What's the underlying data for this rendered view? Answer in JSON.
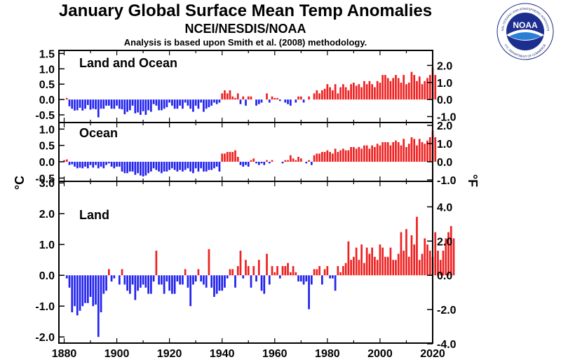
{
  "header": {
    "title": "January Global Surface Mean Temp Anomalies",
    "subtitle": "NCEI/NESDIS/NOAA",
    "note": "Analysis is based upon Smith et al. (2008) methodology."
  },
  "logo": {
    "text": "NOAA",
    "ring_top": "NATIONAL OCEANIC AND ATMOSPHERIC ADMINISTRATION",
    "ring_bottom": "U.S. DEPARTMENT OF COMMERCE"
  },
  "colors": {
    "positive": "#ee2020",
    "negative": "#2222ee",
    "axis": "#000000"
  },
  "chart_data": [
    {
      "type": "bar",
      "title": "Land and Ocean",
      "ylabel": "°C",
      "ylabel_right": "°F",
      "ylim": [
        -0.75,
        1.6
      ],
      "yticks": [
        "1.5",
        "1.0",
        "0.5",
        "0.0",
        "-0.5"
      ],
      "ytick_values": [
        1.5,
        1.0,
        0.5,
        0.0,
        -0.5
      ],
      "yticks_right": [
        "2.0",
        "1.0",
        "0.0",
        "-1.0"
      ],
      "ytick_right_values": [
        2.0,
        1.0,
        0.0,
        -1.0
      ],
      "xlim": [
        1878,
        2020
      ],
      "xticks": [
        "1880",
        "1900",
        "1920",
        "1940",
        "1960",
        "1980",
        "2000",
        "2020"
      ],
      "xtick_values": [
        1880,
        1900,
        1920,
        1940,
        1960,
        1980,
        2000,
        2020
      ],
      "x_start": 1880,
      "values": [
        0.0,
        0.05,
        -0.22,
        -0.3,
        -0.36,
        -0.35,
        -0.27,
        -0.36,
        -0.3,
        -0.18,
        -0.33,
        -0.3,
        -0.32,
        -0.58,
        -0.3,
        -0.3,
        -0.2,
        -0.2,
        -0.3,
        -0.3,
        -0.2,
        -0.3,
        -0.32,
        -0.48,
        -0.4,
        -0.35,
        -0.2,
        -0.45,
        -0.42,
        -0.5,
        -0.38,
        -0.5,
        -0.35,
        -0.4,
        -0.15,
        -0.2,
        -0.35,
        -0.35,
        -0.3,
        -0.25,
        -0.1,
        -0.2,
        -0.3,
        -0.3,
        -0.2,
        -0.3,
        -0.1,
        -0.2,
        -0.3,
        -0.4,
        -0.2,
        -0.3,
        -0.1,
        -0.4,
        -0.3,
        -0.25,
        -0.2,
        -0.1,
        -0.15,
        -0.1,
        0.2,
        0.3,
        0.2,
        0.3,
        0.1,
        0.05,
        0.2,
        -0.15,
        0.1,
        -0.2,
        0.1,
        0.1,
        0.0,
        -0.2,
        -0.15,
        -0.1,
        0.0,
        0.2,
        -0.1,
        0.1,
        0.05,
        0.05,
        -0.05,
        0.0,
        -0.1,
        -0.15,
        -0.2,
        0.0,
        -0.1,
        0.1,
        0.1,
        -0.1,
        0.0,
        0.1,
        0.0,
        0.2,
        0.3,
        0.2,
        0.3,
        0.35,
        0.5,
        0.4,
        0.3,
        0.5,
        0.2,
        0.4,
        0.5,
        0.4,
        0.3,
        0.5,
        0.55,
        0.45,
        0.5,
        0.4,
        0.6,
        0.5,
        0.6,
        0.5,
        0.4,
        0.6,
        0.55,
        0.8,
        0.8,
        0.7,
        0.6,
        0.7,
        0.8,
        0.7,
        0.55,
        0.8,
        0.5,
        0.55,
        0.9,
        0.8,
        0.6,
        0.75,
        0.5,
        0.6,
        0.7,
        0.8,
        1.05,
        0.8
      ]
    },
    {
      "type": "bar",
      "title": "Ocean",
      "ylim": [
        -0.6,
        1.2
      ],
      "yticks": [
        "1.0",
        "0.5",
        "0.0",
        "-0.5"
      ],
      "ytick_values": [
        1.0,
        0.5,
        0.0,
        -0.5
      ],
      "yticks_right": [
        "2.0",
        "1.0",
        "0.0",
        "-1.0"
      ],
      "ytick_right_values": [
        2.0,
        1.0,
        0.0,
        -1.0
      ],
      "xlim": [
        1878,
        2020
      ],
      "x_start": 1880,
      "values": [
        0.05,
        0.07,
        -0.1,
        -0.08,
        -0.15,
        -0.2,
        -0.18,
        -0.2,
        -0.15,
        -0.2,
        -0.1,
        -0.18,
        -0.1,
        -0.2,
        -0.15,
        -0.2,
        -0.1,
        -0.05,
        -0.15,
        -0.2,
        -0.15,
        -0.15,
        -0.3,
        -0.35,
        -0.35,
        -0.3,
        -0.3,
        -0.4,
        -0.35,
        -0.42,
        -0.45,
        -0.42,
        -0.35,
        -0.3,
        -0.2,
        -0.25,
        -0.3,
        -0.35,
        -0.3,
        -0.3,
        -0.25,
        -0.2,
        -0.25,
        -0.3,
        -0.25,
        -0.3,
        -0.25,
        -0.2,
        -0.3,
        -0.35,
        -0.2,
        -0.3,
        -0.2,
        -0.3,
        -0.3,
        -0.25,
        -0.25,
        -0.2,
        -0.15,
        -0.3,
        0.25,
        0.25,
        0.3,
        0.3,
        0.3,
        0.35,
        0.15,
        -0.1,
        -0.15,
        -0.1,
        -0.15,
        0.05,
        0.1,
        -0.05,
        -0.1,
        -0.05,
        -0.1,
        0.05,
        -0.05,
        0.05,
        0.0,
        0.0,
        0.0,
        -0.05,
        0.05,
        0.05,
        0.2,
        0.1,
        0.05,
        0.15,
        0.1,
        0.0,
        -0.05,
        0.05,
        -0.1,
        0.2,
        0.25,
        0.25,
        0.3,
        0.3,
        0.35,
        0.3,
        0.25,
        0.4,
        0.3,
        0.35,
        0.4,
        0.35,
        0.35,
        0.45,
        0.45,
        0.4,
        0.45,
        0.4,
        0.5,
        0.5,
        0.4,
        0.5,
        0.45,
        0.55,
        0.5,
        0.6,
        0.6,
        0.6,
        0.5,
        0.6,
        0.65,
        0.6,
        0.5,
        0.7,
        0.45,
        0.55,
        0.75,
        0.7,
        0.5,
        0.7,
        0.6,
        0.55,
        0.65,
        0.75,
        0.95,
        0.75
      ]
    },
    {
      "type": "bar",
      "title": "Land",
      "ylim": [
        -2.2,
        3.05
      ],
      "yticks": [
        "3.0",
        "2.0",
        "1.0",
        "0.0",
        "-1.0",
        "-2.0"
      ],
      "ytick_values": [
        3.0,
        2.0,
        1.0,
        0.0,
        -1.0,
        -2.0
      ],
      "yticks_right": [
        "4.0",
        "2.0",
        "0.0",
        "-2.0",
        "-4.0"
      ],
      "ytick_right_values": [
        4.0,
        2.0,
        0.0,
        -2.0,
        -4.0
      ],
      "xlim": [
        1878,
        2020
      ],
      "x_start": 1880,
      "values": [
        0.0,
        -0.1,
        -0.4,
        -1.2,
        -1.0,
        -1.3,
        -1.15,
        -1.0,
        -0.9,
        -0.9,
        -0.7,
        -1.0,
        -0.95,
        -2.0,
        -1.2,
        -0.6,
        -0.5,
        0.2,
        -0.2,
        -0.1,
        0.0,
        -0.3,
        0.2,
        -0.3,
        -0.5,
        -0.6,
        -0.3,
        -0.8,
        -0.5,
        -0.4,
        -0.3,
        -0.4,
        -0.6,
        -0.6,
        -0.2,
        0.8,
        -0.3,
        -0.3,
        -0.6,
        -0.2,
        -0.5,
        -0.6,
        -0.6,
        -0.2,
        -0.3,
        -0.3,
        0.2,
        -0.4,
        -1.0,
        -0.3,
        -0.2,
        0.2,
        -0.2,
        -0.3,
        -0.4,
        0.85,
        -0.4,
        -0.7,
        -0.6,
        -0.5,
        -0.5,
        -0.4,
        -0.1,
        0.2,
        0.2,
        -0.4,
        0.3,
        0.8,
        -0.1,
        0.5,
        0.3,
        -0.4,
        0.3,
        -0.2,
        0.5,
        -0.5,
        -0.6,
        0.7,
        -0.3,
        0.3,
        0.1,
        0.3,
        -0.1,
        0.3,
        0.3,
        0.4,
        0.1,
        0.3,
        0.1,
        -0.2,
        -0.2,
        -0.3,
        -0.2,
        -1.1,
        -0.3,
        0.2,
        0.2,
        0.3,
        -0.3,
        0.2,
        0.3,
        -0.1,
        -0.1,
        -0.5,
        0.3,
        0.1,
        0.3,
        0.4,
        1.1,
        0.5,
        0.6,
        0.9,
        0.5,
        1.0,
        0.4,
        0.9,
        0.7,
        0.9,
        0.6,
        0.5,
        1.0,
        0.9,
        0.6,
        0.6,
        0.9,
        0.5,
        0.5,
        0.7,
        1.4,
        0.8,
        1.5,
        0.6,
        1.3,
        1.0,
        1.9,
        0.5,
        0.7,
        1.2,
        1.0,
        0.8,
        0.6,
        1.4,
        0.8,
        0.5,
        0.8,
        1.2,
        1.4,
        1.6,
        1.2
      ]
    }
  ]
}
